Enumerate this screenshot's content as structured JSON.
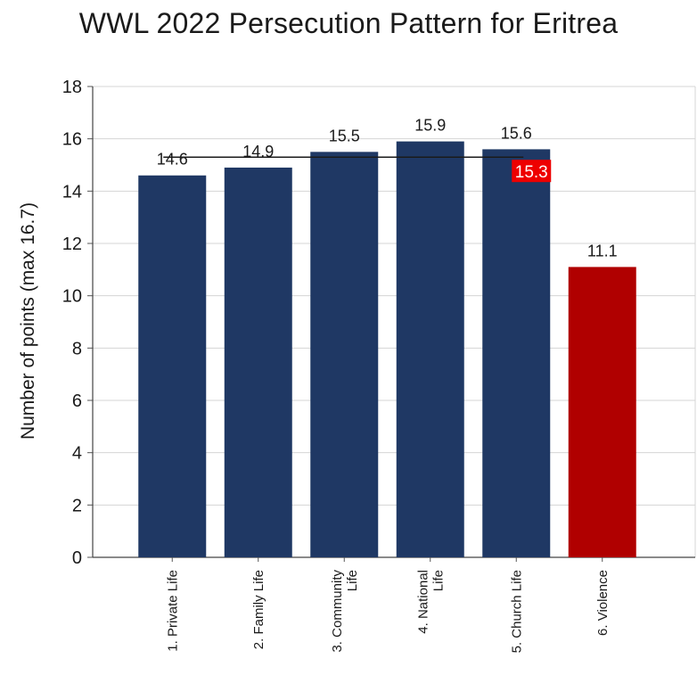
{
  "chart_data": {
    "type": "bar",
    "title": "WWL 2022 Persecution Pattern for Eritrea",
    "ylabel": "Number of points (max 16.7)",
    "xlabel": "",
    "ylim": [
      0,
      18
    ],
    "yticks": [
      0,
      2,
      4,
      6,
      8,
      10,
      12,
      14,
      16,
      18
    ],
    "grid": true,
    "categories": [
      [
        "1. Private Life"
      ],
      [
        "2. Family Life"
      ],
      [
        "3. Community",
        "Life"
      ],
      [
        "4. National",
        "Life"
      ],
      [
        "5. Church Life"
      ],
      [
        "6. Violence"
      ]
    ],
    "values": [
      14.6,
      14.9,
      15.5,
      15.9,
      15.6,
      11.1
    ],
    "value_labels": [
      "14.6",
      "14.9",
      "15.5",
      "15.9",
      "15.6",
      "11.1"
    ],
    "colors": [
      "#1f3864",
      "#1f3864",
      "#1f3864",
      "#1f3864",
      "#1f3864",
      "#b00000"
    ],
    "average": {
      "value": 15.3,
      "label": "15.3",
      "label_bg": "#ee0000",
      "line_color": "#1a1a1a"
    }
  }
}
